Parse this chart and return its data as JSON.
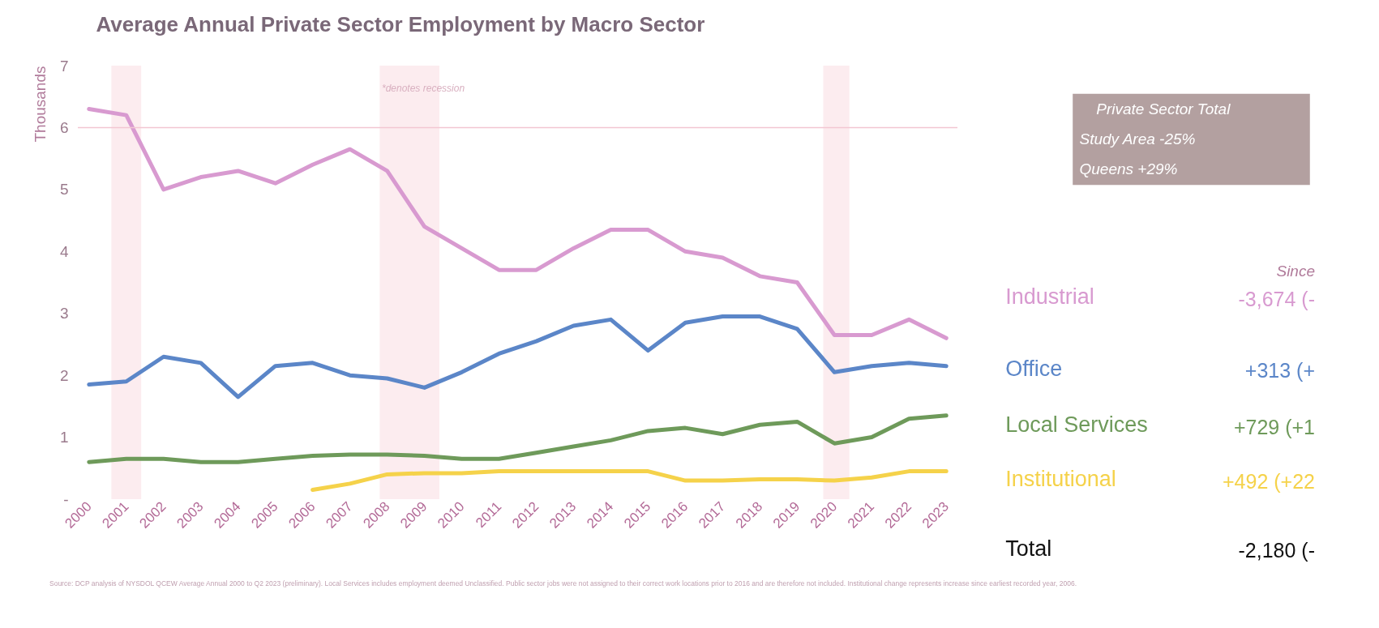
{
  "chart_data": {
    "type": "line",
    "title": "Average Annual Private Sector Employment by Macro Sector",
    "ylabel": "Thousands",
    "x": [
      2000,
      2001,
      2002,
      2003,
      2004,
      2005,
      2006,
      2007,
      2008,
      2009,
      2010,
      2011,
      2012,
      2013,
      2014,
      2015,
      2016,
      2017,
      2018,
      2019,
      2020,
      2021,
      2022,
      2023
    ],
    "series": [
      {
        "name": "Industrial",
        "color": "#d89ad0",
        "values": [
          6.3,
          6.2,
          5.0,
          5.2,
          5.3,
          5.1,
          5.4,
          5.65,
          5.3,
          4.4,
          4.05,
          3.7,
          3.7,
          4.05,
          4.35,
          4.35,
          4.0,
          3.9,
          3.6,
          3.5,
          2.65,
          2.65,
          2.9,
          2.6
        ]
      },
      {
        "name": "Office",
        "color": "#5b86c8",
        "values": [
          1.85,
          1.9,
          2.3,
          2.2,
          1.65,
          2.15,
          2.2,
          2.0,
          1.95,
          1.8,
          2.05,
          2.35,
          2.55,
          2.8,
          2.9,
          2.4,
          2.85,
          2.95,
          2.95,
          2.75,
          2.05,
          2.15,
          2.2,
          2.15
        ]
      },
      {
        "name": "Local Services",
        "color": "#6e9a5a",
        "values": [
          0.6,
          0.65,
          0.65,
          0.6,
          0.6,
          0.65,
          0.7,
          0.72,
          0.72,
          0.7,
          0.65,
          0.65,
          0.75,
          0.85,
          0.95,
          1.1,
          1.15,
          1.05,
          1.2,
          1.25,
          0.9,
          1.0,
          1.3,
          1.35
        ]
      },
      {
        "name": "Institutional",
        "color": "#f5d24a",
        "values": [
          null,
          null,
          null,
          null,
          null,
          null,
          0.15,
          0.25,
          0.4,
          0.42,
          0.42,
          0.45,
          0.45,
          0.45,
          0.45,
          0.45,
          0.3,
          0.3,
          0.32,
          0.32,
          0.3,
          0.35,
          0.45,
          0.45
        ]
      }
    ],
    "xlim": [
      1999.7,
      2023.3
    ],
    "xticks": [
      2000,
      2001,
      2002,
      2003,
      2004,
      2005,
      2006,
      2007,
      2008,
      2009,
      2010,
      2011,
      2012,
      2013,
      2014,
      2015,
      2016,
      2017,
      2018,
      2019,
      2020,
      2021,
      2022,
      2023
    ],
    "ylim": [
      0,
      7
    ],
    "yticks": [
      {
        "value": 0,
        "label": "-"
      },
      1,
      2,
      3,
      4,
      5,
      6,
      7
    ],
    "bands": [
      {
        "axis": "x",
        "from": 2000.6,
        "to": 2001.4,
        "color": "#fcecef"
      },
      {
        "axis": "x",
        "from": 2007.8,
        "to": 2009.4,
        "color": "#fcecef"
      },
      {
        "axis": "x",
        "from": 2019.7,
        "to": 2020.4,
        "color": "#fcecef"
      }
    ],
    "ref_lines": [
      {
        "axis": "y",
        "value": 6,
        "color": "#f2c6d2"
      }
    ],
    "legend": "right",
    "grid": false,
    "annotations": [
      "*denotes recession",
      "Private Sector Total",
      "Study Area -25%",
      "Queens +29%",
      "Since",
      "-3,674 (-",
      "+313 (+",
      "+729 (+1",
      "+492 (+22",
      "Total",
      "-2,180 (-",
      "Source: DCP analysis of NYSDOL QCEW Average Annual 2000 to Q2 2023 (preliminary). Local Services includes employment deemed Unclassified. Public sector jobs were not assigned to their correct work locations prior to 2016 and are therefore not included. Institutional change represents increase since earliest recorded year, 2006."
    ]
  }
}
